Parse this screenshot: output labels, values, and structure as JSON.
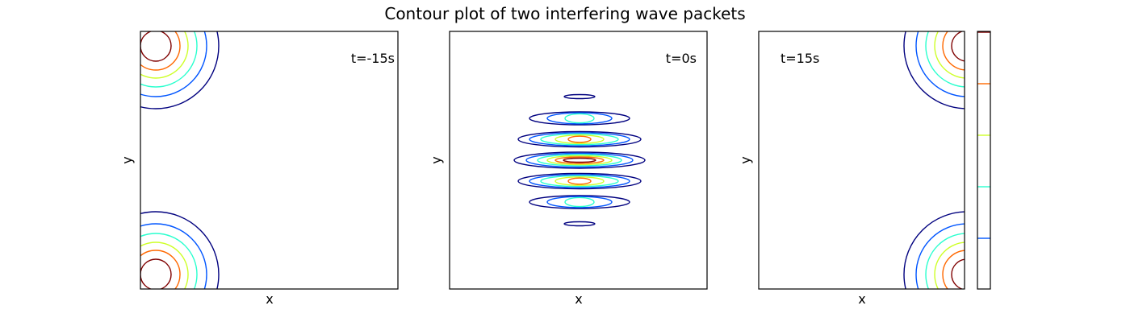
{
  "figure": {
    "title": "Contour plot of two interfering wave packets"
  },
  "colors": {
    "levels": [
      "#00007f",
      "#0055ff",
      "#29ffce",
      "#ceff29",
      "#ff6800",
      "#7f0000"
    ],
    "frame": "#000000"
  },
  "chart_data": [
    {
      "type": "contour",
      "panel": "left",
      "annotation": "t=-15s",
      "xlabel": "x",
      "ylabel": "y",
      "xticks": [],
      "yticks": [],
      "packets": [
        {
          "center": "top-left",
          "levels": 6
        },
        {
          "center": "bottom-left",
          "levels": 6
        }
      ],
      "level_colors": [
        "#00007f",
        "#0055ff",
        "#29ffce",
        "#ceff29",
        "#ff6800",
        "#7f0000"
      ]
    },
    {
      "type": "contour",
      "panel": "center",
      "annotation": "t=0s",
      "xlabel": "x",
      "ylabel": "y",
      "xticks": [],
      "yticks": [],
      "interference_fringes": 7,
      "level_colors": [
        "#00007f",
        "#0055ff",
        "#29ffce",
        "#ceff29",
        "#ff6800",
        "#7f0000"
      ]
    },
    {
      "type": "contour",
      "panel": "right",
      "annotation": "t=15s",
      "xlabel": "x",
      "ylabel": "y",
      "xticks": [],
      "yticks": [],
      "packets": [
        {
          "center": "top-right",
          "levels": 6
        },
        {
          "center": "bottom-right",
          "levels": 6
        }
      ],
      "level_colors": [
        "#00007f",
        "#0055ff",
        "#29ffce",
        "#ceff29",
        "#ff6800",
        "#7f0000"
      ]
    }
  ],
  "colorbar": {
    "ticks": [],
    "level_colors": [
      "#0055ff",
      "#29ffce",
      "#ceff29",
      "#ff6800",
      "#7f0000"
    ]
  }
}
